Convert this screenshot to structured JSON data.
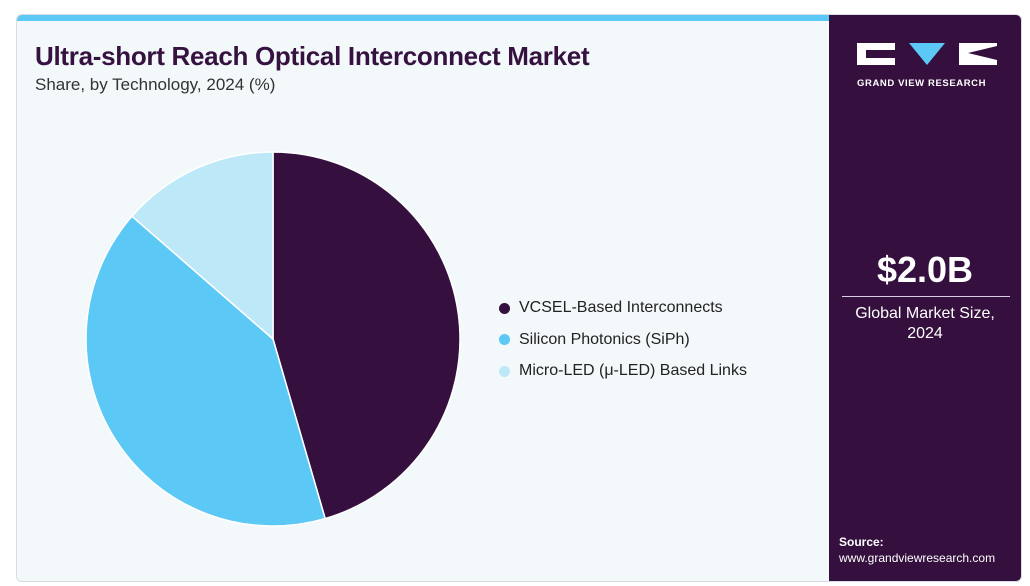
{
  "header": {
    "title": "Ultra-short Reach Optical Interconnect Market",
    "subtitle": "Share, by Technology, 2024 (%)"
  },
  "colors": {
    "accent_strip": "#5bc8f5",
    "sidebar_bg": "#35103f",
    "title_color": "#35123f"
  },
  "chart_data": {
    "type": "pie",
    "title": "Ultra-short Reach Optical Interconnect Market",
    "subtitle": "Share, by Technology, 2024 (%)",
    "start_angle": "12 o'clock",
    "direction": "clockwise",
    "legend_position": "right",
    "slices": [
      {
        "label": "VCSEL-Based Interconnects",
        "value": 45.5,
        "color": "#35103f"
      },
      {
        "label": "Silicon Photonics (SiPh)",
        "value": 40.9,
        "color": "#5bc8f5"
      },
      {
        "label": "Micro-LED (μ-LED) Based Links",
        "value": 13.6,
        "color": "#bde8f8"
      }
    ]
  },
  "sidebar": {
    "brand": "GRAND VIEW RESEARCH",
    "market_value": "$2.0B",
    "market_label": "Global Market Size, 2024",
    "source_label": "Source:",
    "source_url": "www.grandviewresearch.com"
  }
}
